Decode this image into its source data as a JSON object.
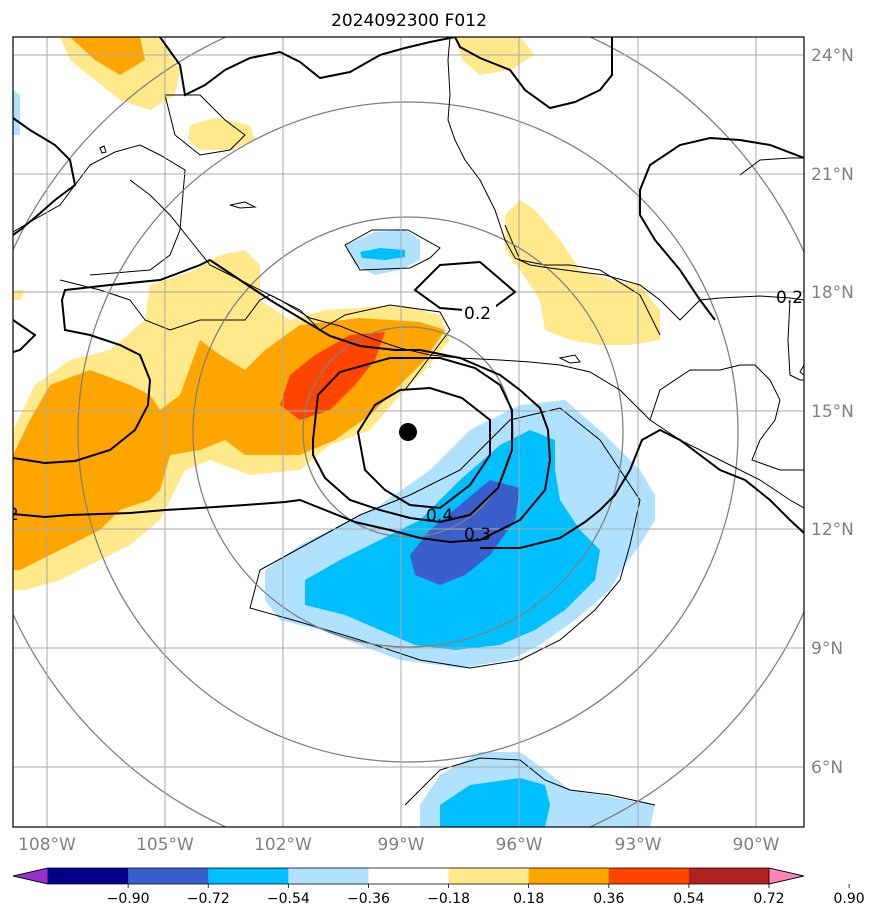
{
  "title": "2024092300 F012",
  "lat_labels": [
    "24°N",
    "21°N",
    "18°N",
    "15°N",
    "12°N",
    "9°N",
    "6°N"
  ],
  "lon_labels": [
    "108°W",
    "105°W",
    "102°W",
    "99°W",
    "96°W",
    "93°W",
    "90°W"
  ],
  "contour_labels": [
    "0.2",
    "0.4",
    "0.3",
    "0.2",
    "2"
  ],
  "colorbar": {
    "ticks": [
      "−0.90",
      "−0.72",
      "−0.54",
      "−0.36",
      "−0.18",
      "0.18",
      "0.36",
      "0.54",
      "0.72",
      "0.90"
    ],
    "colors": [
      "#9932cc",
      "#00008b",
      "#3a5fcd",
      "#00bfff",
      "#b0e2ff",
      "#ffffff",
      "#ffe98a",
      "#ffa500",
      "#ff4500",
      "#b22222",
      "#ff83b4"
    ]
  },
  "storm_center_marker": "black dot"
}
